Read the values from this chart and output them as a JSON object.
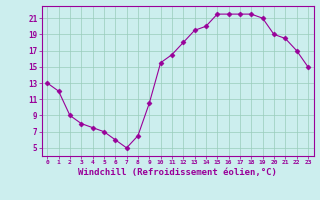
{
  "x": [
    0,
    1,
    2,
    3,
    4,
    5,
    6,
    7,
    8,
    9,
    10,
    11,
    12,
    13,
    14,
    15,
    16,
    17,
    18,
    19,
    20,
    21,
    22,
    23
  ],
  "y": [
    13,
    12,
    9,
    8,
    7.5,
    7,
    6,
    5,
    6.5,
    10.5,
    15.5,
    16.5,
    18,
    19.5,
    20,
    21.5,
    21.5,
    21.5,
    21.5,
    21,
    19,
    18.5,
    17,
    15
  ],
  "line_color": "#990099",
  "marker": "D",
  "marker_size": 2.5,
  "xlabel": "Windchill (Refroidissement éolien,°C)",
  "bg_color": "#cceeee",
  "grid_color": "#99ccbb",
  "yticks": [
    5,
    7,
    9,
    11,
    13,
    15,
    17,
    19,
    21
  ],
  "xticks": [
    0,
    1,
    2,
    3,
    4,
    5,
    6,
    7,
    8,
    9,
    10,
    11,
    12,
    13,
    14,
    15,
    16,
    17,
    18,
    19,
    20,
    21,
    22,
    23
  ],
  "ylim": [
    4,
    22.5
  ],
  "xlim": [
    -0.5,
    23.5
  ]
}
